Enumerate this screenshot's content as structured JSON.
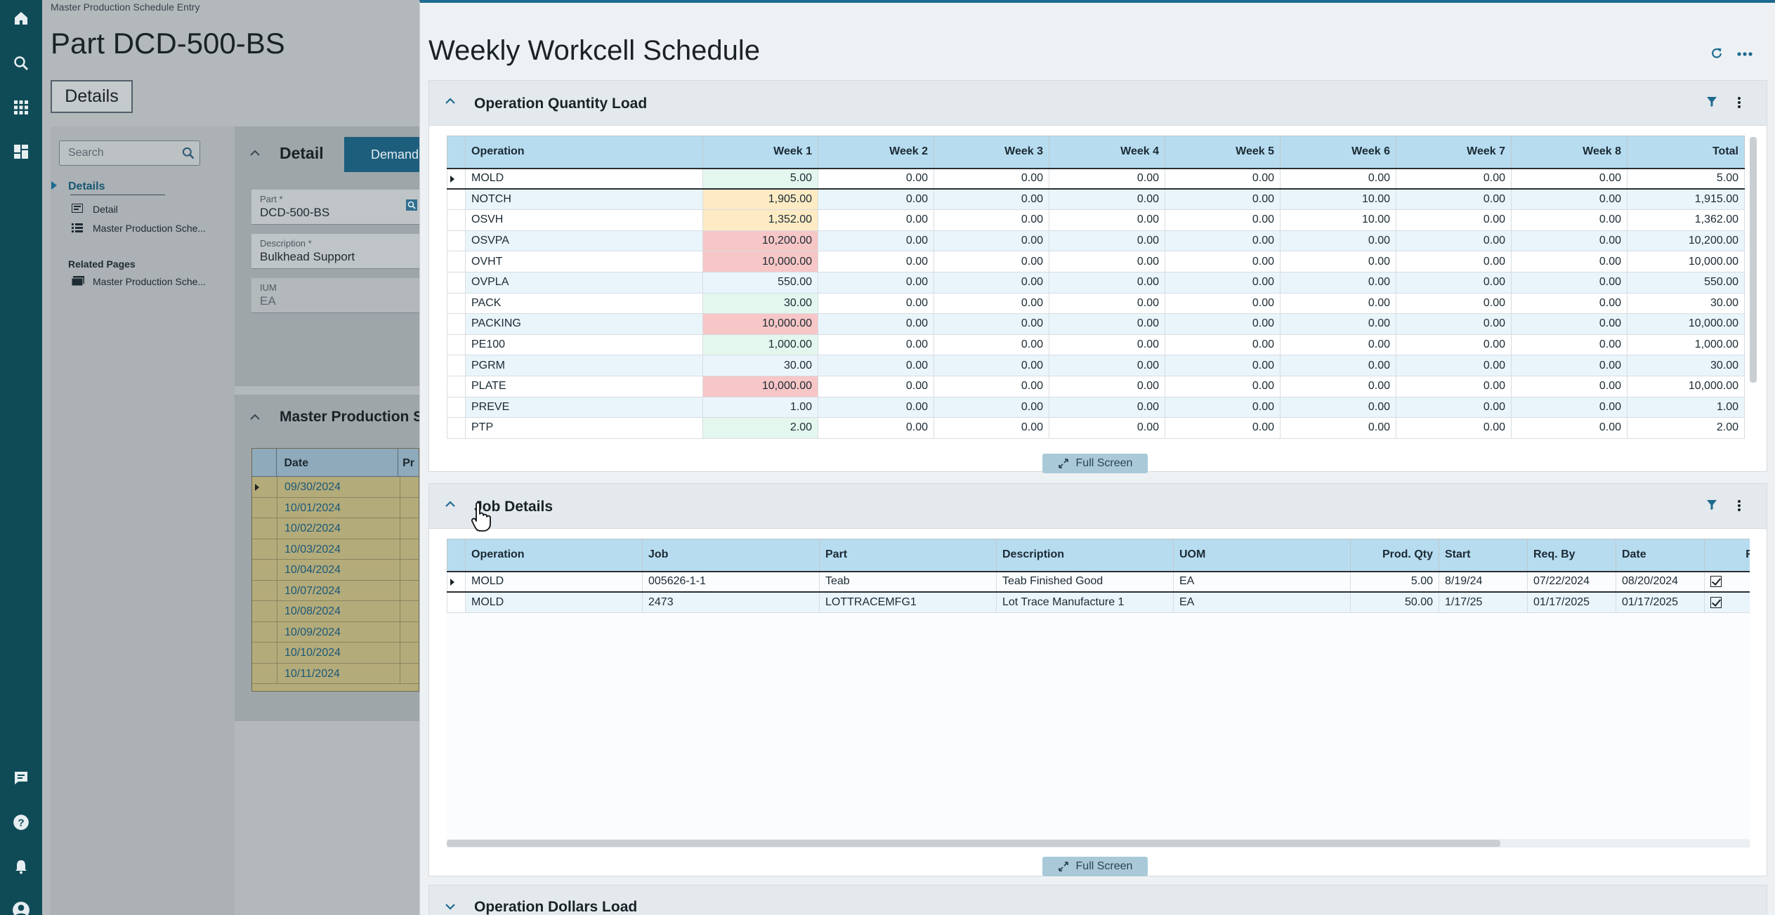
{
  "left_app": {
    "breadcrumb": "Master Production Schedule Entry",
    "page_title": "Part DCD-500-BS",
    "details_tab": "Details",
    "search_placeholder": "Search",
    "tree": {
      "details": "Details",
      "detail": "Detail",
      "mps": "Master Production Sche...",
      "related_pages": "Related Pages",
      "related_mps": "Master Production Sche..."
    },
    "detail_panel": {
      "title": "Detail",
      "demand_button": "Demand",
      "part_label": "Part *",
      "part_value": "DCD-500-BS",
      "description_label": "Description *",
      "description_value": "Bulkhead Support",
      "ium_label": "IUM",
      "ium_value": "EA"
    },
    "mps_panel": {
      "title": "Master Production Sc",
      "col_date": "Date",
      "col_p": "Pr",
      "dates": [
        "09/30/2024",
        "10/01/2024",
        "10/02/2024",
        "10/03/2024",
        "10/04/2024",
        "10/07/2024",
        "10/08/2024",
        "10/09/2024",
        "10/10/2024",
        "10/11/2024"
      ]
    }
  },
  "main": {
    "title": "Weekly Workcell Schedule",
    "refresh_icon": "refresh-icon",
    "more_icon": "more-horizontal-icon",
    "qty_load": {
      "title": "Operation Quantity Load",
      "columns": [
        "Operation",
        "Week 1",
        "Week 2",
        "Week 3",
        "Week 4",
        "Week 5",
        "Week 6",
        "Week 7",
        "Week 8",
        "Total"
      ],
      "rows": [
        {
          "op": "MOLD",
          "w": [
            "5.00",
            "0.00",
            "0.00",
            "0.00",
            "0.00",
            "0.00",
            "0.00",
            "0.00"
          ],
          "total": "5.00",
          "load": "low"
        },
        {
          "op": "NOTCH",
          "w": [
            "1,905.00",
            "0.00",
            "0.00",
            "0.00",
            "0.00",
            "10.00",
            "0.00",
            "0.00"
          ],
          "total": "1,915.00",
          "load": "medium"
        },
        {
          "op": "OSVH",
          "w": [
            "1,352.00",
            "0.00",
            "0.00",
            "0.00",
            "0.00",
            "10.00",
            "0.00",
            "0.00"
          ],
          "total": "1,362.00",
          "load": "medium"
        },
        {
          "op": "OSVPA",
          "w": [
            "10,200.00",
            "0.00",
            "0.00",
            "0.00",
            "0.00",
            "0.00",
            "0.00",
            "0.00"
          ],
          "total": "10,200.00",
          "load": "high"
        },
        {
          "op": "OVHT",
          "w": [
            "10,000.00",
            "0.00",
            "0.00",
            "0.00",
            "0.00",
            "0.00",
            "0.00",
            "0.00"
          ],
          "total": "10,000.00",
          "load": "high"
        },
        {
          "op": "OVPLA",
          "w": [
            "550.00",
            "0.00",
            "0.00",
            "0.00",
            "0.00",
            "0.00",
            "0.00",
            "0.00"
          ],
          "total": "550.00",
          "load": "low"
        },
        {
          "op": "PACK",
          "w": [
            "30.00",
            "0.00",
            "0.00",
            "0.00",
            "0.00",
            "0.00",
            "0.00",
            "0.00"
          ],
          "total": "30.00",
          "load": "low"
        },
        {
          "op": "PACKING",
          "w": [
            "10,000.00",
            "0.00",
            "0.00",
            "0.00",
            "0.00",
            "0.00",
            "0.00",
            "0.00"
          ],
          "total": "10,000.00",
          "load": "high"
        },
        {
          "op": "PE100",
          "w": [
            "1,000.00",
            "0.00",
            "0.00",
            "0.00",
            "0.00",
            "0.00",
            "0.00",
            "0.00"
          ],
          "total": "1,000.00",
          "load": "low"
        },
        {
          "op": "PGRM",
          "w": [
            "30.00",
            "0.00",
            "0.00",
            "0.00",
            "0.00",
            "0.00",
            "0.00",
            "0.00"
          ],
          "total": "30.00",
          "load": "low"
        },
        {
          "op": "PLATE",
          "w": [
            "10,000.00",
            "0.00",
            "0.00",
            "0.00",
            "0.00",
            "0.00",
            "0.00",
            "0.00"
          ],
          "total": "10,000.00",
          "load": "high"
        },
        {
          "op": "PREVE",
          "w": [
            "1.00",
            "0.00",
            "0.00",
            "0.00",
            "0.00",
            "0.00",
            "0.00",
            "0.00"
          ],
          "total": "1.00",
          "load": "low"
        },
        {
          "op": "PTP",
          "w": [
            "2.00",
            "0.00",
            "0.00",
            "0.00",
            "0.00",
            "0.00",
            "0.00",
            "0.00"
          ],
          "total": "2.00",
          "load": "low"
        }
      ],
      "full_screen": "Full Screen"
    },
    "job_details": {
      "title": "Job Details",
      "columns": [
        "Operation",
        "Job",
        "Part",
        "Description",
        "UOM",
        "Prod. Qty",
        "Start",
        "Req. By",
        "Date",
        "Relea"
      ],
      "rows": [
        {
          "op": "MOLD",
          "job": "005626-1-1",
          "part": "Teab",
          "desc": "Teab Finished Good",
          "uom": "EA",
          "qty": "5.00",
          "start": "8/19/24",
          "req": "07/22/2024",
          "date": "08/20/2024",
          "released": true
        },
        {
          "op": "MOLD",
          "job": "2473",
          "part": "LOTTRACEMFG1",
          "desc": "Lot Trace Manufacture 1",
          "uom": "EA",
          "qty": "50.00",
          "start": "1/17/25",
          "req": "01/17/2025",
          "date": "01/17/2025",
          "released": true
        }
      ],
      "full_screen": "Full Screen"
    },
    "dollars_load": {
      "title": "Operation Dollars Load"
    }
  },
  "colors": {
    "nav": "#0f4b57",
    "accent": "#1d6a8e",
    "header_cell": "#b7dcf0",
    "load_low": "#e4f7ee",
    "load_medium": "#fdebc4",
    "load_high": "#f7c6c6"
  }
}
